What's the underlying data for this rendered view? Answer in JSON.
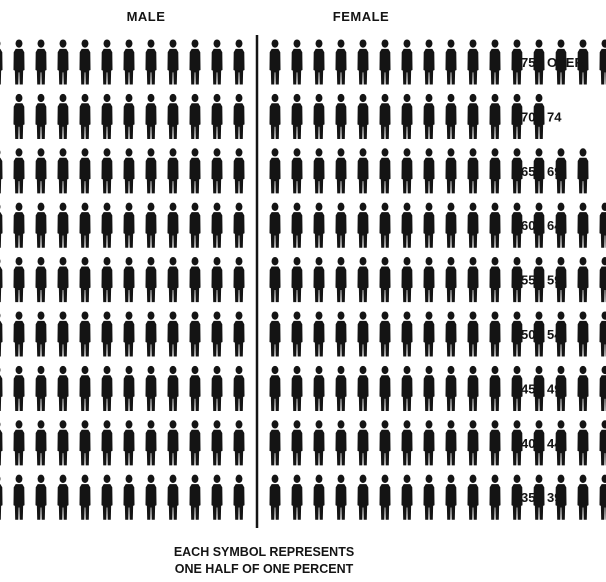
{
  "chart_data": {
    "type": "bar",
    "subtype": "population-pyramid-pictograph",
    "headers": {
      "male": "MALE",
      "female": "FEMALE"
    },
    "categories": [
      "75 - OVER",
      "70 - 74",
      "65 - 69",
      "60 - 64",
      "55 - 59",
      "50 - 54",
      "45 - 49",
      "40 - 44",
      "35 - 39"
    ],
    "series": [
      {
        "name": "MALE",
        "values": [
          6.5,
          5.5,
          6.0,
          8.0,
          11.0,
          11.0,
          10.0,
          10.0,
          10.5
        ]
      },
      {
        "name": "FEMALE",
        "values": [
          8.5,
          6.5,
          7.5,
          8.5,
          10.5,
          10.5,
          10.5,
          10.5,
          10.5
        ]
      }
    ],
    "symbol_unit_percent": 0.5,
    "caption": [
      "EACH SYMBOL REPRESENTS",
      "ONE HALF OF ONE PERCENT"
    ],
    "colors": {
      "ink": "#141414",
      "background": "#ffffff"
    }
  }
}
